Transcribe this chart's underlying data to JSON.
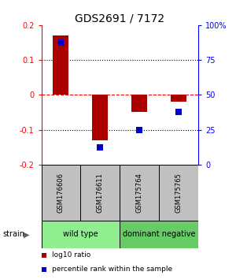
{
  "title": "GDS2691 / 7172",
  "samples": [
    "GSM176606",
    "GSM176611",
    "GSM175764",
    "GSM175765"
  ],
  "log10_ratio": [
    0.17,
    -0.13,
    -0.05,
    -0.02
  ],
  "percentile_rank_pct": [
    87.5,
    12.5,
    25.0,
    37.5
  ],
  "groups": [
    {
      "label": "wild type",
      "indices": [
        0,
        1
      ],
      "color": "#90EE90"
    },
    {
      "label": "dominant negative",
      "indices": [
        2,
        3
      ],
      "color": "#66CC66"
    }
  ],
  "group_row_label": "strain",
  "ylim_left": [
    -0.2,
    0.2
  ],
  "ylim_right": [
    0,
    100
  ],
  "yticks_left": [
    -0.2,
    -0.1,
    0.0,
    0.1,
    0.2
  ],
  "ytick_labels_left": [
    "-0.2",
    "-0.1",
    "0",
    "0.1",
    "0.2"
  ],
  "yticks_right": [
    0,
    25,
    50,
    75,
    100
  ],
  "ytick_labels_right": [
    "0",
    "25",
    "50",
    "75",
    "100%"
  ],
  "hlines": [
    0.1,
    -0.1
  ],
  "red_line_y": 0.0,
  "bar_color": "#AA0000",
  "dot_color": "#0000CC",
  "bar_width": 0.4,
  "dot_size": 40,
  "title_fontsize": 10,
  "tick_fontsize": 7,
  "sample_fontsize": 6,
  "group_fontsize": 7,
  "legend_fontsize": 6.5,
  "gray_color": "#C0C0C0"
}
